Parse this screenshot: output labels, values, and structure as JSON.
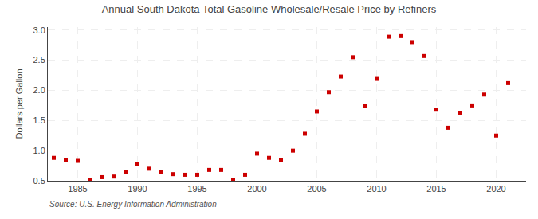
{
  "chart_data": {
    "type": "scatter",
    "title": "Annual South Dakota Total Gasoline Wholesale/Resale Price by Refiners",
    "ylabel": "Dollars per Gallon",
    "annotations": [
      "Source: U.S. Energy Information Administration"
    ],
    "x": [
      1983,
      1984,
      1985,
      1986,
      1987,
      1988,
      1989,
      1990,
      1991,
      1992,
      1993,
      1994,
      1995,
      1996,
      1997,
      1998,
      1999,
      2000,
      2001,
      2002,
      2003,
      2004,
      2005,
      2006,
      2007,
      2008,
      2009,
      2010,
      2011,
      2012,
      2013,
      2014,
      2015,
      2016,
      2017,
      2018,
      2019,
      2020,
      2021
    ],
    "values": [
      0.88,
      0.84,
      0.83,
      0.51,
      0.56,
      0.57,
      0.65,
      0.78,
      0.7,
      0.65,
      0.61,
      0.6,
      0.6,
      0.68,
      0.68,
      0.51,
      0.6,
      0.95,
      0.88,
      0.85,
      1.0,
      1.28,
      1.65,
      1.97,
      2.23,
      2.55,
      1.74,
      2.19,
      2.89,
      2.9,
      2.8,
      2.57,
      1.68,
      1.38,
      1.63,
      1.75,
      1.93,
      1.25,
      2.12
    ],
    "color": "#cc0000",
    "marker": "square",
    "xlim": [
      1982.5,
      2022.5
    ],
    "ylim": [
      0.5,
      3.05
    ],
    "xticks": [
      1985,
      1990,
      1995,
      2000,
      2005,
      2010,
      2015,
      2020
    ],
    "yticks": [
      0.5,
      {
        "value": 1.0,
        "label": "1.0"
      },
      1.5,
      {
        "value": 2.0,
        "label": "2.0"
      },
      2.5,
      {
        "value": 3.0,
        "label": "3.0"
      }
    ],
    "grid": true
  }
}
